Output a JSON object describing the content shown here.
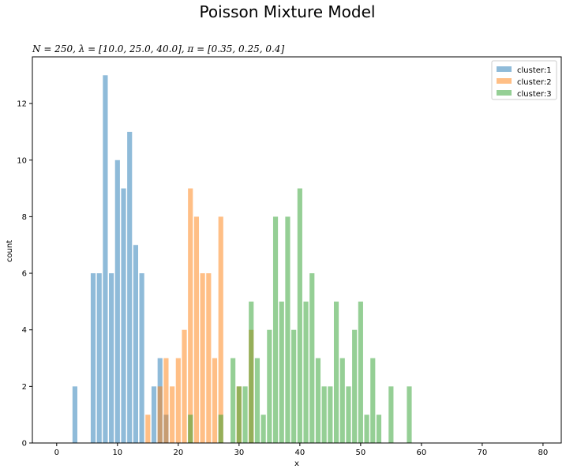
{
  "chart_data": {
    "type": "bar",
    "title": "Poisson Mixture Model",
    "subtitle": "N = 250, λ = [10.0, 25.0, 40.0], π = [0.35, 0.25, 0.4]",
    "xlabel": "x",
    "ylabel": "count",
    "xlim": [
      -4,
      83
    ],
    "ylim": [
      0,
      13.65
    ],
    "xticks": [
      0,
      10,
      20,
      30,
      40,
      50,
      60,
      70,
      80
    ],
    "yticks": [
      0,
      2,
      4,
      6,
      8,
      10,
      12
    ],
    "grid": false,
    "legend_position": "top-right",
    "series": [
      {
        "name": "cluster:1",
        "color": "#1f77b4",
        "x": [
          3,
          6,
          7,
          8,
          9,
          10,
          11,
          12,
          13,
          14,
          16,
          17,
          18
        ],
        "values": [
          2,
          6,
          6,
          13,
          6,
          10,
          9,
          11,
          7,
          6,
          2,
          3,
          1
        ]
      },
      {
        "name": "cluster:2",
        "color": "#ff7f0e",
        "x": [
          15,
          17,
          18,
          19,
          20,
          21,
          22,
          23,
          24,
          25,
          26,
          27,
          30,
          32
        ],
        "values": [
          1,
          2,
          3,
          2,
          3,
          4,
          9,
          8,
          6,
          6,
          3,
          8,
          2,
          4
        ]
      },
      {
        "name": "cluster:3",
        "color": "#2ca02c",
        "x": [
          22,
          27,
          29,
          30,
          31,
          32,
          33,
          34,
          35,
          36,
          37,
          38,
          39,
          40,
          41,
          42,
          43,
          44,
          45,
          46,
          47,
          48,
          49,
          50,
          51,
          52,
          53,
          55,
          58
        ],
        "values": [
          1,
          1,
          3,
          2,
          2,
          5,
          3,
          1,
          4,
          8,
          5,
          8,
          4,
          9,
          5,
          6,
          3,
          2,
          2,
          5,
          3,
          2,
          4,
          5,
          1,
          3,
          1,
          2,
          2
        ]
      }
    ]
  }
}
